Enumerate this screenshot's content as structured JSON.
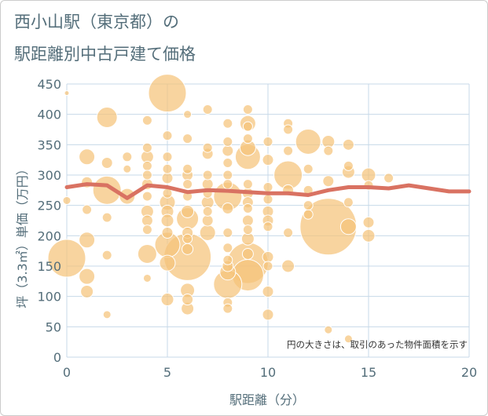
{
  "title_line1": "西小山駅（東京都）の",
  "title_line2": "駅距離別中古戸建て価格",
  "note": "円の大きさは、取引のあった物件面積を示す",
  "chart_data": {
    "type": "scatter",
    "title": "西小山駅（東京都）の 駅距離別中古戸建て価格",
    "xlabel": "駅距離（分）",
    "ylabel": "坪（3.3㎡）単価（万円）",
    "xlim": [
      0,
      20
    ],
    "ylim": [
      0,
      450
    ],
    "xticks": [
      0,
      5,
      10,
      15,
      20
    ],
    "yticks": [
      0,
      50,
      100,
      150,
      200,
      250,
      300,
      350,
      400,
      450
    ],
    "grid": true,
    "colors": {
      "bubble": "#f5c37a",
      "line": "#d97262",
      "grid": "#c7d9e8",
      "text": "#546e7a"
    },
    "scatter": [
      {
        "x": 0,
        "y": 435,
        "s": 3
      },
      {
        "x": 0,
        "y": 258,
        "s": 5
      },
      {
        "x": 0,
        "y": 163,
        "s": 24
      },
      {
        "x": 1,
        "y": 330,
        "s": 10
      },
      {
        "x": 1,
        "y": 288,
        "s": 7
      },
      {
        "x": 1,
        "y": 243,
        "s": 6
      },
      {
        "x": 1,
        "y": 193,
        "s": 10
      },
      {
        "x": 1,
        "y": 133,
        "s": 10
      },
      {
        "x": 1,
        "y": 108,
        "s": 8
      },
      {
        "x": 2,
        "y": 395,
        "s": 13
      },
      {
        "x": 2,
        "y": 320,
        "s": 7
      },
      {
        "x": 2,
        "y": 275,
        "s": 18
      },
      {
        "x": 2,
        "y": 230,
        "s": 6
      },
      {
        "x": 2,
        "y": 168,
        "s": 6
      },
      {
        "x": 2,
        "y": 70,
        "s": 5
      },
      {
        "x": 3,
        "y": 330,
        "s": 6
      },
      {
        "x": 3,
        "y": 310,
        "s": 5
      },
      {
        "x": 3,
        "y": 265,
        "s": 10
      },
      {
        "x": 4,
        "y": 390,
        "s": 6
      },
      {
        "x": 4,
        "y": 345,
        "s": 6
      },
      {
        "x": 4,
        "y": 330,
        "s": 8
      },
      {
        "x": 4,
        "y": 315,
        "s": 6
      },
      {
        "x": 4,
        "y": 300,
        "s": 6
      },
      {
        "x": 4,
        "y": 285,
        "s": 7
      },
      {
        "x": 4,
        "y": 265,
        "s": 6
      },
      {
        "x": 4,
        "y": 240,
        "s": 8
      },
      {
        "x": 4,
        "y": 225,
        "s": 7
      },
      {
        "x": 4,
        "y": 210,
        "s": 6
      },
      {
        "x": 4,
        "y": 170,
        "s": 12
      },
      {
        "x": 4,
        "y": 130,
        "s": 5
      },
      {
        "x": 5,
        "y": 435,
        "s": 24
      },
      {
        "x": 5,
        "y": 365,
        "s": 6
      },
      {
        "x": 5,
        "y": 330,
        "s": 6
      },
      {
        "x": 5,
        "y": 310,
        "s": 6
      },
      {
        "x": 5,
        "y": 295,
        "s": 7
      },
      {
        "x": 5,
        "y": 270,
        "s": 6
      },
      {
        "x": 5,
        "y": 255,
        "s": 10
      },
      {
        "x": 5,
        "y": 240,
        "s": 8
      },
      {
        "x": 5,
        "y": 225,
        "s": 8
      },
      {
        "x": 5,
        "y": 205,
        "s": 7
      },
      {
        "x": 5,
        "y": 185,
        "s": 16
      },
      {
        "x": 5,
        "y": 155,
        "s": 10
      },
      {
        "x": 5,
        "y": 95,
        "s": 8
      },
      {
        "x": 6,
        "y": 400,
        "s": 5
      },
      {
        "x": 6,
        "y": 360,
        "s": 6
      },
      {
        "x": 6,
        "y": 310,
        "s": 6
      },
      {
        "x": 6,
        "y": 300,
        "s": 7
      },
      {
        "x": 6,
        "y": 285,
        "s": 6
      },
      {
        "x": 6,
        "y": 265,
        "s": 6
      },
      {
        "x": 6,
        "y": 240,
        "s": 8
      },
      {
        "x": 6,
        "y": 228,
        "s": 14
      },
      {
        "x": 6,
        "y": 205,
        "s": 7
      },
      {
        "x": 6,
        "y": 195,
        "s": 6
      },
      {
        "x": 6,
        "y": 178,
        "s": 7
      },
      {
        "x": 6,
        "y": 165,
        "s": 30
      },
      {
        "x": 6,
        "y": 110,
        "s": 9
      },
      {
        "x": 6,
        "y": 95,
        "s": 7
      },
      {
        "x": 6,
        "y": 80,
        "s": 8
      },
      {
        "x": 7,
        "y": 408,
        "s": 6
      },
      {
        "x": 7,
        "y": 335,
        "s": 7
      },
      {
        "x": 7,
        "y": 345,
        "s": 6
      },
      {
        "x": 7,
        "y": 300,
        "s": 6
      },
      {
        "x": 7,
        "y": 285,
        "s": 7
      },
      {
        "x": 7,
        "y": 270,
        "s": 6
      },
      {
        "x": 7,
        "y": 255,
        "s": 8
      },
      {
        "x": 7,
        "y": 240,
        "s": 6
      },
      {
        "x": 7,
        "y": 225,
        "s": 7
      },
      {
        "x": 7,
        "y": 205,
        "s": 10
      },
      {
        "x": 8,
        "y": 385,
        "s": 6
      },
      {
        "x": 8,
        "y": 355,
        "s": 6
      },
      {
        "x": 8,
        "y": 340,
        "s": 7
      },
      {
        "x": 8,
        "y": 320,
        "s": 6
      },
      {
        "x": 8,
        "y": 300,
        "s": 6
      },
      {
        "x": 8,
        "y": 285,
        "s": 6
      },
      {
        "x": 8,
        "y": 265,
        "s": 18
      },
      {
        "x": 8,
        "y": 245,
        "s": 7
      },
      {
        "x": 8,
        "y": 205,
        "s": 6
      },
      {
        "x": 8,
        "y": 180,
        "s": 6
      },
      {
        "x": 8,
        "y": 160,
        "s": 6
      },
      {
        "x": 8,
        "y": 150,
        "s": 7
      },
      {
        "x": 8,
        "y": 140,
        "s": 10
      },
      {
        "x": 8,
        "y": 120,
        "s": 18
      },
      {
        "x": 8,
        "y": 90,
        "s": 6
      },
      {
        "x": 8,
        "y": 80,
        "s": 6
      },
      {
        "x": 9,
        "y": 408,
        "s": 6
      },
      {
        "x": 9,
        "y": 385,
        "s": 10
      },
      {
        "x": 9,
        "y": 380,
        "s": 6
      },
      {
        "x": 9,
        "y": 360,
        "s": 6
      },
      {
        "x": 9,
        "y": 345,
        "s": 10
      },
      {
        "x": 9,
        "y": 330,
        "s": 16
      },
      {
        "x": 9,
        "y": 285,
        "s": 6
      },
      {
        "x": 9,
        "y": 270,
        "s": 7
      },
      {
        "x": 9,
        "y": 255,
        "s": 7
      },
      {
        "x": 9,
        "y": 245,
        "s": 6
      },
      {
        "x": 9,
        "y": 225,
        "s": 7
      },
      {
        "x": 9,
        "y": 210,
        "s": 6
      },
      {
        "x": 9,
        "y": 195,
        "s": 8
      },
      {
        "x": 9,
        "y": 170,
        "s": 7
      },
      {
        "x": 9,
        "y": 155,
        "s": 26
      },
      {
        "x": 9,
        "y": 135,
        "s": 20
      },
      {
        "x": 10,
        "y": 355,
        "s": 6
      },
      {
        "x": 10,
        "y": 325,
        "s": 7
      },
      {
        "x": 10,
        "y": 280,
        "s": 6
      },
      {
        "x": 10,
        "y": 260,
        "s": 6
      },
      {
        "x": 10,
        "y": 240,
        "s": 7
      },
      {
        "x": 10,
        "y": 225,
        "s": 7
      },
      {
        "x": 10,
        "y": 215,
        "s": 6
      },
      {
        "x": 10,
        "y": 165,
        "s": 7
      },
      {
        "x": 10,
        "y": 150,
        "s": 6
      },
      {
        "x": 10,
        "y": 108,
        "s": 7
      },
      {
        "x": 10,
        "y": 70,
        "s": 7
      },
      {
        "x": 11,
        "y": 385,
        "s": 6
      },
      {
        "x": 11,
        "y": 375,
        "s": 6
      },
      {
        "x": 11,
        "y": 340,
        "s": 6
      },
      {
        "x": 11,
        "y": 300,
        "s": 18
      },
      {
        "x": 11,
        "y": 275,
        "s": 7
      },
      {
        "x": 11,
        "y": 205,
        "s": 6
      },
      {
        "x": 11,
        "y": 150,
        "s": 8
      },
      {
        "x": 12,
        "y": 355,
        "s": 16
      },
      {
        "x": 12,
        "y": 310,
        "s": 6
      },
      {
        "x": 12,
        "y": 275,
        "s": 6
      },
      {
        "x": 12,
        "y": 250,
        "s": 6
      },
      {
        "x": 12,
        "y": 235,
        "s": 6
      },
      {
        "x": 13,
        "y": 355,
        "s": 8
      },
      {
        "x": 13,
        "y": 340,
        "s": 6
      },
      {
        "x": 13,
        "y": 290,
        "s": 7
      },
      {
        "x": 13,
        "y": 215,
        "s": 36
      },
      {
        "x": 13,
        "y": 45,
        "s": 5
      },
      {
        "x": 14,
        "y": 350,
        "s": 7
      },
      {
        "x": 14,
        "y": 315,
        "s": 6
      },
      {
        "x": 14,
        "y": 305,
        "s": 8
      },
      {
        "x": 14,
        "y": 255,
        "s": 6
      },
      {
        "x": 14,
        "y": 215,
        "s": 10
      },
      {
        "x": 14,
        "y": 30,
        "s": 5
      },
      {
        "x": 15,
        "y": 300,
        "s": 9
      },
      {
        "x": 15,
        "y": 283,
        "s": 6
      },
      {
        "x": 15,
        "y": 222,
        "s": 7
      },
      {
        "x": 15,
        "y": 200,
        "s": 8
      },
      {
        "x": 16,
        "y": 295,
        "s": 6
      }
    ],
    "line": {
      "x": [
        0,
        1,
        2,
        3,
        4,
        5,
        6,
        7,
        8,
        9,
        10,
        11,
        12,
        13,
        14,
        15,
        16,
        17,
        18,
        19,
        20
      ],
      "y": [
        280,
        285,
        283,
        262,
        283,
        280,
        272,
        275,
        274,
        272,
        270,
        270,
        267,
        275,
        280,
        280,
        278,
        283,
        278,
        273,
        273
      ]
    }
  }
}
